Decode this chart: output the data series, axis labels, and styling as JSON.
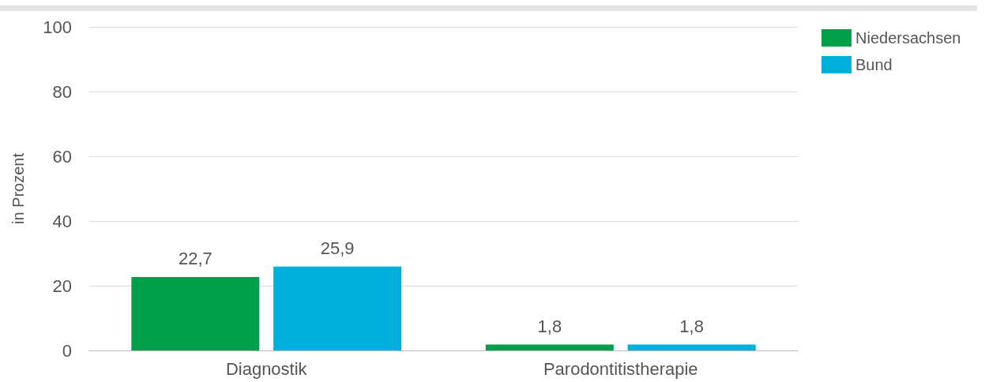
{
  "chart_data": {
    "type": "bar",
    "ylabel": "in Prozent",
    "categories": [
      "Diagnostik",
      "Parodontitistherapie"
    ],
    "series": [
      {
        "name": "Niedersachsen",
        "color": "#00a04a",
        "values": [
          22.7,
          1.8
        ],
        "value_labels": [
          "22,7",
          "1,8"
        ]
      },
      {
        "name": "Bund",
        "color": "#00b0dc",
        "values": [
          25.9,
          1.8
        ],
        "value_labels": [
          "25,9",
          "1,8"
        ]
      }
    ],
    "ylim": [
      0,
      100
    ],
    "yticks": [
      0,
      20,
      40,
      60,
      80,
      100
    ],
    "grid": "y",
    "legend": "top right"
  }
}
